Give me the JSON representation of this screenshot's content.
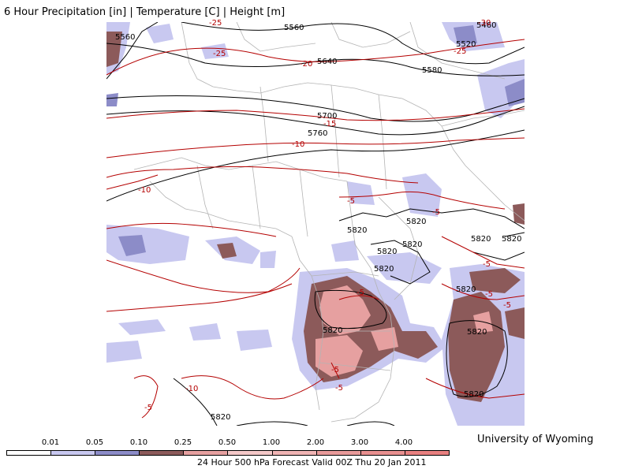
{
  "title": "6 Hour Precipitation [in] | Temperature [C] | Height [m]",
  "credit": "University of Wyoming",
  "footer": "24 Hour 500 hPa Forecast Valid 00Z Thu 20 Jan 2011",
  "legend": {
    "labels": [
      "0.01",
      "0.05",
      "0.10",
      "0.25",
      "0.50",
      "1.00",
      "2.00",
      "3.00",
      "4.00"
    ],
    "colors": [
      "#ffffff",
      "#c8c8f0",
      "#8c8cc8",
      "#8c5a5a",
      "#e6a0a0",
      "#f4c8c8",
      "#f0b4b4",
      "#e89a9a",
      "#e89090"
    ]
  },
  "height_labels": [
    "5560",
    "5580",
    "5640",
    "5580",
    "5520",
    "5460",
    "5700",
    "5760",
    "5820",
    "5820",
    "5820",
    "5820",
    "5820",
    "5820",
    "5820",
    "5820",
    "5820",
    "5820",
    "5820"
  ],
  "temp_labels": [
    "-25",
    "-25",
    "-20",
    "-25",
    "-30",
    "-15",
    "-10",
    "-10",
    "-5",
    "-5",
    "-5",
    "-5",
    "-5",
    "-5",
    "-5",
    "-5",
    "-10",
    "-5"
  ],
  "colors": {
    "precip_light": "#c8c8f0",
    "precip_med": "#8c8cc8",
    "precip_dark": "#8c5a5a",
    "precip_pink": "#e6a0a0",
    "height": "#000000",
    "temp": "#b40000",
    "border": "#b4b4b4"
  }
}
